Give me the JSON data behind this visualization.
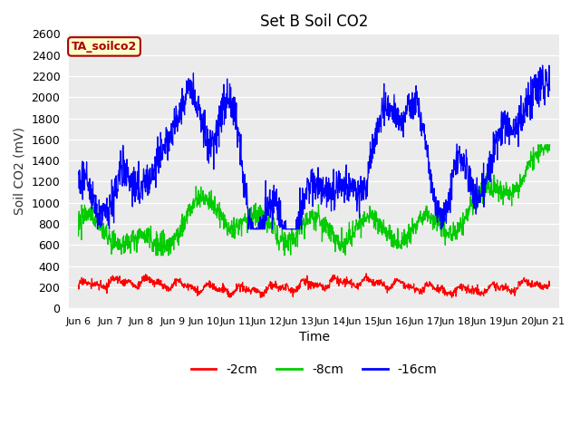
{
  "title": "Set B Soil CO2",
  "ylabel": "Soil CO2 (mV)",
  "xlabel": "Time",
  "ylim": [
    0,
    2600
  ],
  "legend_labels": [
    "-2cm",
    "-8cm",
    "-16cm"
  ],
  "legend_colors": [
    "#ff0000",
    "#00cc00",
    "#0000ff"
  ],
  "annotation_text": "TA_soilco2",
  "annotation_bg": "#ffffcc",
  "annotation_border": "#aa0000",
  "plot_bg": "#ebebeb",
  "grid_color": "#ffffff",
  "xtick_labels": [
    "Jun 6",
    "Jun 7",
    "Jun 8",
    "Jun 9",
    "Jun 10",
    "Jun 11",
    "Jun 12",
    "Jun 13",
    "Jun 14",
    "Jun 15",
    "Jun 16",
    "Jun 17",
    "Jun 18",
    "Jun 19",
    "Jun 20",
    "Jun 21"
  ],
  "title_fontsize": 12,
  "axis_label_fontsize": 10,
  "tick_label_fontsize": 8
}
